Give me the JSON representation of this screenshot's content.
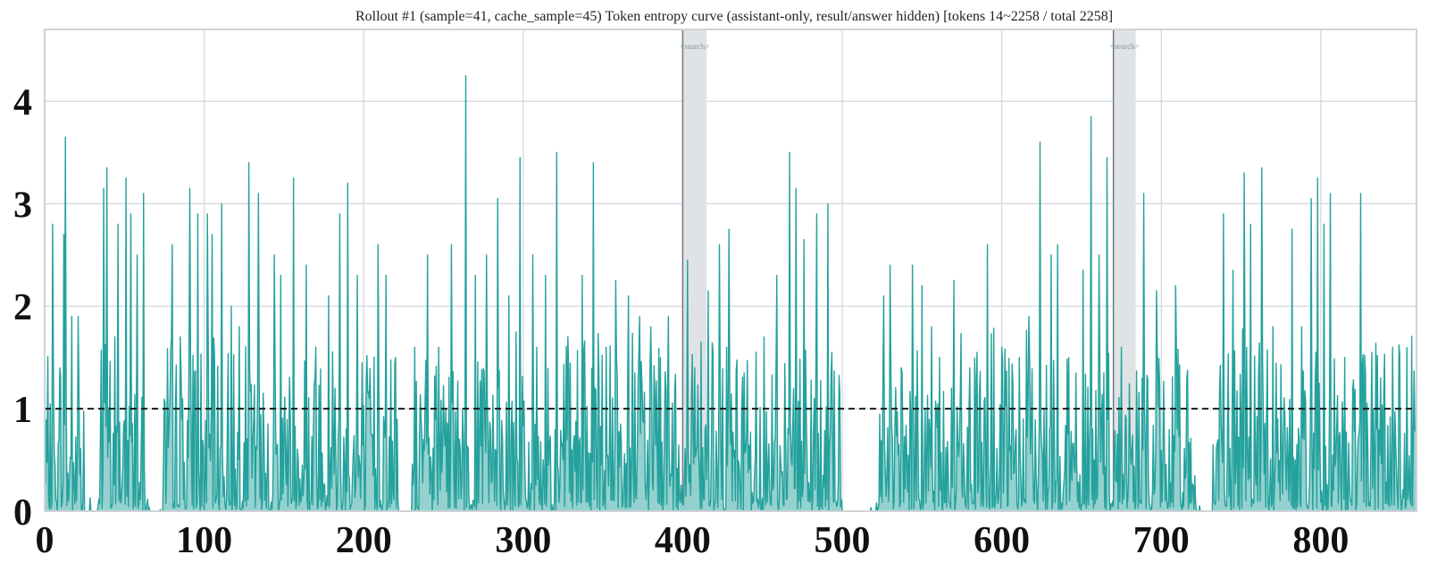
{
  "chart_data": {
    "type": "area",
    "title": "Rollout #1 (sample=41, cache_sample=45)  Token entropy curve (assistant-only, result/answer hidden)  [tokens 14~2258 / total 2258]",
    "xlabel": "",
    "ylabel": "",
    "xlim": [
      0,
      860
    ],
    "ylim": [
      0,
      4.7
    ],
    "x_ticks": [
      0,
      100,
      200,
      300,
      400,
      500,
      600,
      700,
      800
    ],
    "y_ticks": [
      0,
      1,
      2,
      3,
      4
    ],
    "grid": true,
    "reference_line": {
      "y": 1.0,
      "style": "dashed"
    },
    "bands": [
      {
        "start": 400,
        "end": 415,
        "label": "<search>"
      },
      {
        "start": 670,
        "end": 684,
        "label": "<search>"
      }
    ],
    "peaks": [
      [
        0,
        1.9
      ],
      [
        5,
        2.8
      ],
      [
        9,
        0.7
      ],
      [
        12,
        2.7
      ],
      [
        13,
        3.65
      ],
      [
        17,
        1.9
      ],
      [
        21,
        1.9
      ],
      [
        37,
        3.15
      ],
      [
        39,
        3.35
      ],
      [
        44,
        1.7
      ],
      [
        46,
        2.8
      ],
      [
        51,
        3.25
      ],
      [
        54,
        2.9
      ],
      [
        58,
        2.5
      ],
      [
        62,
        3.1
      ],
      [
        68,
        2.0
      ],
      [
        74,
        2.5
      ],
      [
        80,
        2.6
      ],
      [
        85,
        1.7
      ],
      [
        91,
        3.15
      ],
      [
        96,
        2.9
      ],
      [
        102,
        2.9
      ],
      [
        105,
        2.7
      ],
      [
        111,
        3.0
      ],
      [
        117,
        2.0
      ],
      [
        122,
        1.8
      ],
      [
        128,
        3.4
      ],
      [
        134,
        3.1
      ],
      [
        144,
        2.5
      ],
      [
        148,
        2.3
      ],
      [
        156,
        3.25
      ],
      [
        164,
        2.4
      ],
      [
        170,
        1.6
      ],
      [
        178,
        2.1
      ],
      [
        185,
        2.9
      ],
      [
        190,
        3.2
      ],
      [
        196,
        2.3
      ],
      [
        209,
        2.6
      ],
      [
        214,
        2.3
      ],
      [
        232,
        1.6
      ],
      [
        240,
        2.5
      ],
      [
        247,
        1.6
      ],
      [
        255,
        2.6
      ],
      [
        264,
        4.25
      ],
      [
        270,
        2.3
      ],
      [
        277,
        2.5
      ],
      [
        284,
        3.05
      ],
      [
        291,
        2.1
      ],
      [
        298,
        3.45
      ],
      [
        306,
        2.5
      ],
      [
        314,
        2.3
      ],
      [
        321,
        3.5
      ],
      [
        328,
        1.7
      ],
      [
        337,
        2.3
      ],
      [
        344,
        3.4
      ],
      [
        352,
        1.6
      ],
      [
        358,
        2.25
      ],
      [
        366,
        2.1
      ],
      [
        373,
        1.9
      ],
      [
        380,
        1.8
      ],
      [
        386,
        1.5
      ],
      [
        391,
        1.9
      ],
      [
        403,
        2.45
      ],
      [
        416,
        2.15
      ],
      [
        423,
        2.6
      ],
      [
        429,
        2.75
      ],
      [
        437,
        1.0
      ],
      [
        451,
        1.7
      ],
      [
        459,
        2.3
      ],
      [
        467,
        3.5
      ],
      [
        471,
        3.15
      ],
      [
        476,
        2.65
      ],
      [
        484,
        2.9
      ],
      [
        491,
        3.0
      ],
      [
        509,
        0.1
      ],
      [
        517,
        0.1
      ],
      [
        526,
        2.1
      ],
      [
        530,
        2.4
      ],
      [
        537,
        1.4
      ],
      [
        544,
        2.4
      ],
      [
        550,
        2.2
      ],
      [
        556,
        1.8
      ],
      [
        561,
        1.5
      ],
      [
        570,
        2.25
      ],
      [
        580,
        1.4
      ],
      [
        591,
        2.6
      ],
      [
        600,
        1.6
      ],
      [
        611,
        1.5
      ],
      [
        617,
        1.9
      ],
      [
        624,
        3.6
      ],
      [
        631,
        2.5
      ],
      [
        635,
        2.6
      ],
      [
        642,
        1.5
      ],
      [
        651,
        2.35
      ],
      [
        656,
        3.85
      ],
      [
        661,
        2.5
      ],
      [
        666,
        3.45
      ],
      [
        675,
        1.6
      ],
      [
        689,
        3.1
      ],
      [
        697,
        2.15
      ],
      [
        709,
        2.2
      ],
      [
        716,
        1.3
      ],
      [
        725,
        0.6
      ],
      [
        739,
        2.9
      ],
      [
        745,
        2.35
      ],
      [
        752,
        3.3
      ],
      [
        756,
        2.8
      ],
      [
        763,
        3.35
      ],
      [
        770,
        1.8
      ],
      [
        782,
        2.75
      ],
      [
        788,
        1.8
      ],
      [
        794,
        3.05
      ],
      [
        798,
        3.25
      ],
      [
        802,
        2.8
      ],
      [
        806,
        3.1
      ],
      [
        815,
        1.5
      ],
      [
        825,
        3.1
      ],
      [
        832,
        1.55
      ],
      [
        845,
        1.6
      ],
      [
        858,
        0.7
      ]
    ],
    "gaps": [
      [
        25,
        33
      ],
      [
        66,
        74
      ],
      [
        222,
        230
      ],
      [
        500,
        522
      ],
      [
        722,
        732
      ]
    ]
  }
}
